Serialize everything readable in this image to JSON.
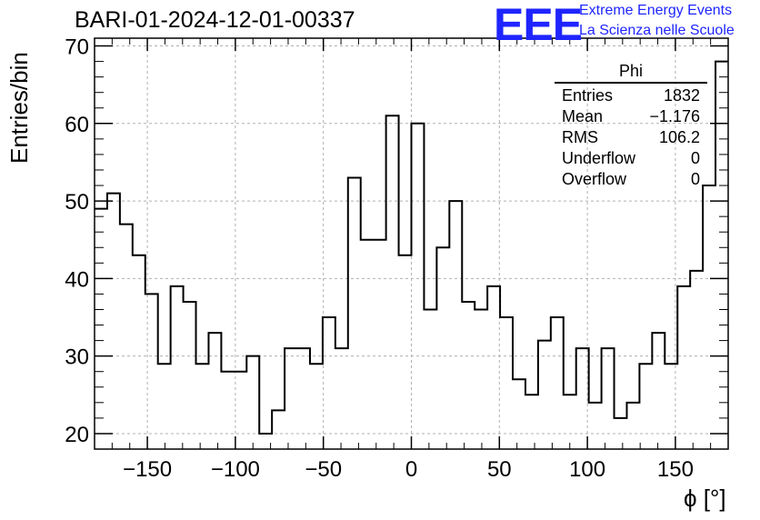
{
  "chart_data": {
    "type": "histogram",
    "title": "BARI-01-2024-12-01-00337",
    "xlabel": "ϕ [°]",
    "ylabel": "Entries/bin",
    "xlim": [
      -180,
      180
    ],
    "ylim": [
      18,
      71
    ],
    "bin_width": 7.2,
    "xticks": [
      -150,
      -100,
      -50,
      0,
      50,
      100,
      150
    ],
    "yticks": [
      20,
      30,
      40,
      50,
      60,
      70
    ],
    "grid": true,
    "counts": [
      49,
      51,
      47,
      43,
      38,
      29,
      39,
      37,
      29,
      33,
      28,
      28,
      30,
      20,
      23,
      31,
      31,
      29,
      35,
      31,
      53,
      45,
      45,
      61,
      43,
      60,
      36,
      44,
      50,
      37,
      36,
      39,
      35,
      27,
      25,
      32,
      35,
      25,
      31,
      24,
      31,
      22,
      24,
      29,
      33,
      29,
      39,
      41,
      52,
      68
    ]
  },
  "header": {
    "logo_text": "EEE",
    "logo_line1": "Extreme Energy Events",
    "logo_line2": "La Scienza nelle Scuole"
  },
  "stats": {
    "title": "Phi",
    "rows": [
      {
        "label": "Entries",
        "value": "1832"
      },
      {
        "label": "Mean",
        "value": "−1.176"
      },
      {
        "label": "RMS",
        "value": "106.2"
      },
      {
        "label": "Underflow",
        "value": "0"
      },
      {
        "label": "Overflow",
        "value": "0"
      }
    ]
  },
  "colors": {
    "line": "#000000",
    "grid": "#b0b0b0",
    "brand": "#1f25ff"
  }
}
